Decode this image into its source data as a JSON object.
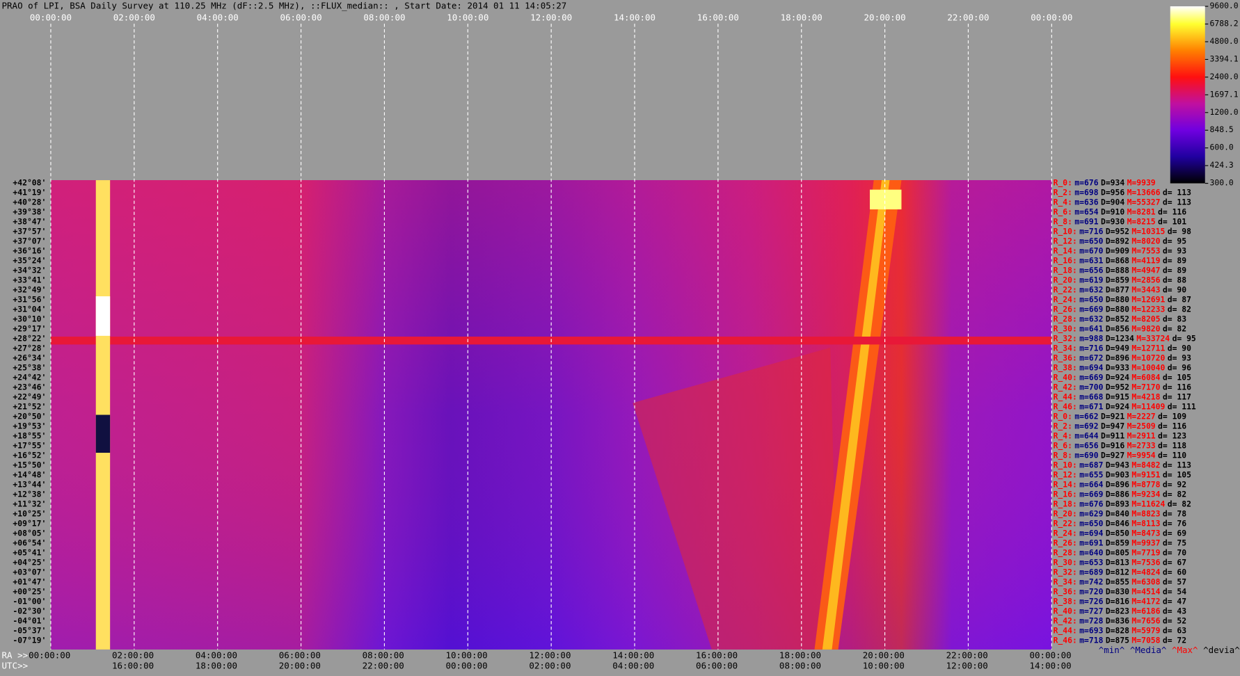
{
  "title": "PRAO of LPI, BSA Daily Survey at 110.25 MHz (dF::2.5 MHz), ::FLUX_median:: , Start Date: 2014 01 11 14:05:27",
  "top_axis": [
    "00:00:00",
    "02:00:00",
    "04:00:00",
    "06:00:00",
    "08:00:00",
    "10:00:00",
    "12:00:00",
    "14:00:00",
    "16:00:00",
    "18:00:00",
    "20:00:00",
    "22:00:00",
    "00:00:00"
  ],
  "ra_prefix": "RA >>",
  "ra_axis": [
    "00:00:00",
    "02:00:00",
    "04:00:00",
    "06:00:00",
    "08:00:00",
    "10:00:00",
    "12:00:00",
    "14:00:00",
    "16:00:00",
    "18:00:00",
    "20:00:00",
    "22:00:00",
    "00:00:00"
  ],
  "utc_prefix": "UTC>>",
  "utc_axis": [
    "16:00:00",
    "18:00:00",
    "20:00:00",
    "22:00:00",
    "00:00:00",
    "02:00:00",
    "04:00:00",
    "06:00:00",
    "08:00:00",
    "10:00:00",
    "12:00:00",
    "14:00:00"
  ],
  "colorbar": {
    "range": [
      300,
      9600
    ],
    "log": true,
    "ticks": [
      {
        "value": 9600,
        "label": "9600.0"
      },
      {
        "value": 6788.2,
        "label": "6788.2"
      },
      {
        "value": 4800,
        "label": "4800.0"
      },
      {
        "value": 3394.1,
        "label": "3394.1"
      },
      {
        "value": 2400,
        "label": "2400.0"
      },
      {
        "value": 1697.1,
        "label": "1697.1"
      },
      {
        "value": 1200,
        "label": "1200.0"
      },
      {
        "value": 848.5,
        "label": "848.5"
      },
      {
        "value": 600,
        "label": "600.0"
      },
      {
        "value": 424.3,
        "label": "424.3"
      },
      {
        "value": 300,
        "label": "300.0"
      }
    ]
  },
  "declinations": [
    "+42°08'",
    "+41°19'",
    "+40°28'",
    "+39°38'",
    "+38°47'",
    "+37°57'",
    "+37°07'",
    "+36°16'",
    "+35°24'",
    "+34°32'",
    "+33°41'",
    "+32°49'",
    "+31°56'",
    "+31°04'",
    "+30°10'",
    "+29°17'",
    "+28°22'",
    "+27°28'",
    "+26°34'",
    "+25°38'",
    "+24°42'",
    "+23°46'",
    "+22°49'",
    "+21°52'",
    "+20°50'",
    "+19°53'",
    "+18°55'",
    "+17°55'",
    "+16°52'",
    "+15°50'",
    "+14°48'",
    "+13°44'",
    "+12°38'",
    "+11°32'",
    "+10°25'",
    "+09°17'",
    "+08°05'",
    "+06°54'",
    "+05°41'",
    "+04°25'",
    "+03°07'",
    "+01°47'",
    "+00°25'",
    "-01°00'",
    "-02°30'",
    "-04°01'",
    "-05°37'",
    "-07°19'"
  ],
  "beam_stats": [
    {
      "beam": "R_0:",
      "min": "m=676",
      "median": "D=934",
      "max": "M=9939"
    },
    {
      "beam": "R_2:",
      "min": "m=698",
      "median": "D=956",
      "max": "M=13666",
      "dev": "d= 113"
    },
    {
      "beam": "R_4:",
      "min": "m=636",
      "median": "D=904",
      "max": "M=55327",
      "dev": "d= 113"
    },
    {
      "beam": "R_6:",
      "min": "m=654",
      "median": "D=910",
      "max": "M=8281",
      "dev": "d= 116"
    },
    {
      "beam": "R_8:",
      "min": "m=691",
      "median": "D=930",
      "max": "M=8215",
      "dev": "d= 101"
    },
    {
      "beam": "R_10:",
      "min": "m=716",
      "median": "D=952",
      "max": "M=10315",
      "dev": "d= 98"
    },
    {
      "beam": "R_12:",
      "min": "m=650",
      "median": "D=892",
      "max": "M=8020",
      "dev": "d= 95"
    },
    {
      "beam": "R_14:",
      "min": "m=670",
      "median": "D=909",
      "max": "M=7553",
      "dev": "d= 93"
    },
    {
      "beam": "R_16:",
      "min": "m=631",
      "median": "D=868",
      "max": "M=4119",
      "dev": "d= 89"
    },
    {
      "beam": "R_18:",
      "min": "m=656",
      "median": "D=888",
      "max": "M=4947",
      "dev": "d= 89"
    },
    {
      "beam": "R_20:",
      "min": "m=619",
      "median": "D=859",
      "max": "M=2856",
      "dev": "d= 88"
    },
    {
      "beam": "R_22:",
      "min": "m=632",
      "median": "D=877",
      "max": "M=3443",
      "dev": "d= 90"
    },
    {
      "beam": "R_24:",
      "min": "m=650",
      "median": "D=880",
      "max": "M=12691",
      "dev": "d= 87"
    },
    {
      "beam": "R_26:",
      "min": "m=669",
      "median": "D=880",
      "max": "M=12233",
      "dev": "d= 82"
    },
    {
      "beam": "R_28:",
      "min": "m=632",
      "median": "D=852",
      "max": "M=8205",
      "dev": "d= 83"
    },
    {
      "beam": "R_30:",
      "min": "m=641",
      "median": "D=856",
      "max": "M=9820",
      "dev": "d= 82"
    },
    {
      "beam": "R_32:",
      "min": "m=988",
      "median": "D=1234",
      "max": "M=33724",
      "dev": "d= 95"
    },
    {
      "beam": "R_34:",
      "min": "m=716",
      "median": "D=949",
      "max": "M=12711",
      "dev": "d= 90"
    },
    {
      "beam": "R_36:",
      "min": "m=672",
      "median": "D=896",
      "max": "M=10720",
      "dev": "d= 93"
    },
    {
      "beam": "R_38:",
      "min": "m=694",
      "median": "D=933",
      "max": "M=10040",
      "dev": "d= 96"
    },
    {
      "beam": "R_40:",
      "min": "m=669",
      "median": "D=924",
      "max": "M=6084",
      "dev": "d= 105"
    },
    {
      "beam": "R_42:",
      "min": "m=700",
      "median": "D=952",
      "max": "M=7170",
      "dev": "d= 116"
    },
    {
      "beam": "R_44:",
      "min": "m=668",
      "median": "D=915",
      "max": "M=4218",
      "dev": "d= 117"
    },
    {
      "beam": "R_46:",
      "min": "m=671",
      "median": "D=924",
      "max": "M=11409",
      "dev": "d= 111"
    },
    {
      "beam": "R_0:",
      "min": "m=662",
      "median": "D=921",
      "max": "M=2227",
      "dev": "d= 109"
    },
    {
      "beam": "R_2:",
      "min": "m=692",
      "median": "D=947",
      "max": "M=2509",
      "dev": "d= 116"
    },
    {
      "beam": "R_4:",
      "min": "m=644",
      "median": "D=911",
      "max": "M=2911",
      "dev": "d= 123"
    },
    {
      "beam": "R_6:",
      "min": "m=656",
      "median": "D=916",
      "max": "M=2733",
      "dev": "d= 118"
    },
    {
      "beam": "R_8:",
      "min": "m=690",
      "median": "D=927",
      "max": "M=9954",
      "dev": "d= 110"
    },
    {
      "beam": "R_10:",
      "min": "m=687",
      "median": "D=943",
      "max": "M=8482",
      "dev": "d= 113"
    },
    {
      "beam": "R_12:",
      "min": "m=655",
      "median": "D=903",
      "max": "M=9151",
      "dev": "d= 105"
    },
    {
      "beam": "R_14:",
      "min": "m=664",
      "median": "D=896",
      "max": "M=8778",
      "dev": "d= 92"
    },
    {
      "beam": "R_16:",
      "min": "m=669",
      "median": "D=886",
      "max": "M=9234",
      "dev": "d= 82"
    },
    {
      "beam": "R_18:",
      "min": "m=676",
      "median": "D=893",
      "max": "M=11624",
      "dev": "d= 82"
    },
    {
      "beam": "R_20:",
      "min": "m=629",
      "median": "D=840",
      "max": "M=8823",
      "dev": "d= 78"
    },
    {
      "beam": "R_22:",
      "min": "m=650",
      "median": "D=846",
      "max": "M=8113",
      "dev": "d= 76"
    },
    {
      "beam": "R_24:",
      "min": "m=694",
      "median": "D=850",
      "max": "M=8473",
      "dev": "d= 69"
    },
    {
      "beam": "R_26:",
      "min": "m=691",
      "median": "D=859",
      "max": "M=9937",
      "dev": "d= 75"
    },
    {
      "beam": "R_28:",
      "min": "m=640",
      "median": "D=805",
      "max": "M=7719",
      "dev": "d= 70"
    },
    {
      "beam": "R_30:",
      "min": "m=653",
      "median": "D=813",
      "max": "M=7536",
      "dev": "d= 67"
    },
    {
      "beam": "R_32:",
      "min": "m=689",
      "median": "D=812",
      "max": "M=4824",
      "dev": "d= 60"
    },
    {
      "beam": "R_34:",
      "min": "m=742",
      "median": "D=855",
      "max": "M=6308",
      "dev": "d= 57"
    },
    {
      "beam": "R_36:",
      "min": "m=720",
      "median": "D=830",
      "max": "M=4514",
      "dev": "d= 54"
    },
    {
      "beam": "R_38:",
      "min": "m=726",
      "median": "D=816",
      "max": "M=4172",
      "dev": "d= 47"
    },
    {
      "beam": "R_40:",
      "min": "m=727",
      "median": "D=823",
      "max": "M=6186",
      "dev": "d= 43"
    },
    {
      "beam": "R_42:",
      "min": "m=728",
      "median": "D=836",
      "max": "M=7656",
      "dev": "d= 52"
    },
    {
      "beam": "R_44:",
      "min": "m=693",
      "median": "D=828",
      "max": "M=5979",
      "dev": "d= 63"
    },
    {
      "beam": "R_46:",
      "min": "m=718",
      "median": "D=875",
      "max": "M=7058",
      "dev": "d= 72"
    }
  ],
  "stats_footer": [
    "^min^",
    "^Media^",
    "^Max^",
    "^devia^"
  ]
}
